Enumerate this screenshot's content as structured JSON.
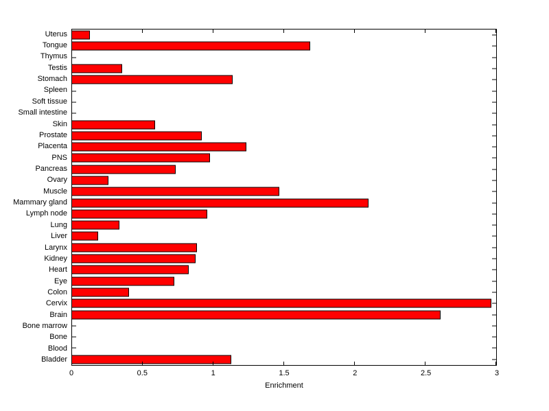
{
  "figure": {
    "background": "#ffffff"
  },
  "chart_data": {
    "type": "bar",
    "orientation": "horizontal",
    "title": "",
    "xlabel": "Enrichment",
    "ylabel": "",
    "categories": [
      "Uterus",
      "Tongue",
      "Thymus",
      "Testis",
      "Stomach",
      "Spleen",
      "Soft tissue",
      "Small intestine",
      "Skin",
      "Prostate",
      "Placenta",
      "PNS",
      "Pancreas",
      "Ovary",
      "Muscle",
      "Mammary gland",
      "Lymph node",
      "Lung",
      "Liver",
      "Larynx",
      "Kidney",
      "Heart",
      "Eye",
      "Colon",
      "Cervix",
      "Brain",
      "Bone marrow",
      "Bone",
      "Blood",
      "Bladder"
    ],
    "values": [
      0.13,
      1.69,
      0,
      0.36,
      1.14,
      0,
      0,
      0,
      0.59,
      0.92,
      1.24,
      0.98,
      0.74,
      0.26,
      1.47,
      2.1,
      0.96,
      0.34,
      0.19,
      0.89,
      0.88,
      0.83,
      0.73,
      0.41,
      2.97,
      2.61,
      0,
      0,
      0,
      1.13
    ],
    "xlim": [
      0,
      3
    ],
    "xticks": [
      0,
      0.5,
      1,
      1.5,
      2,
      2.5,
      3
    ],
    "xtick_labels": [
      "0",
      "0.5",
      "1",
      "1.5",
      "2",
      "2.5",
      "3"
    ],
    "bar_color": "#ff0000",
    "bar_edge_color": "#000000",
    "axis_color": "#000000",
    "grid": false,
    "legend": null
  }
}
